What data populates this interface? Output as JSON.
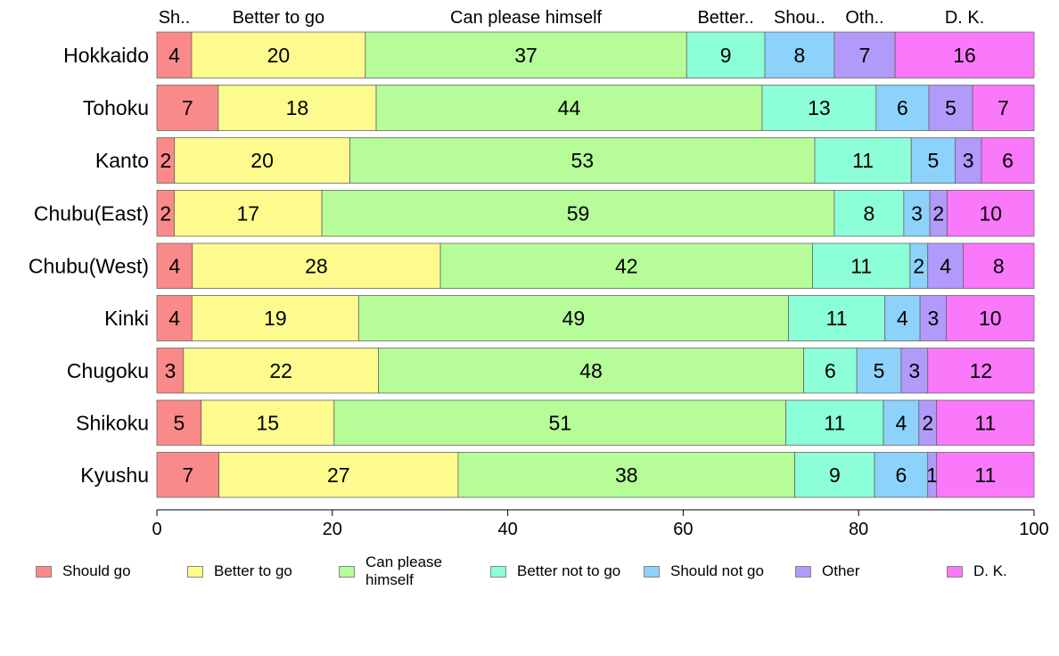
{
  "chart_data": {
    "type": "bar",
    "orientation": "horizontal",
    "stacked": true,
    "categories": [
      "Hokkaido",
      "Tohoku",
      "Kanto",
      "Chubu(East)",
      "Chubu(West)",
      "Kinki",
      "Chugoku",
      "Shikoku",
      "Kyushu"
    ],
    "series": [
      {
        "name": "Should go",
        "color": "#fa8a8a",
        "values": [
          4,
          7,
          2,
          2,
          4,
          4,
          3,
          5,
          7
        ]
      },
      {
        "name": "Better to go",
        "color": "#fdfb8e",
        "values": [
          20,
          18,
          20,
          17,
          28,
          19,
          22,
          15,
          27
        ]
      },
      {
        "name": "Can please himself",
        "color": "#b6fc98",
        "values": [
          37,
          44,
          53,
          59,
          42,
          49,
          48,
          51,
          38
        ]
      },
      {
        "name": "Better not to go",
        "color": "#8cffd8",
        "values": [
          9,
          13,
          11,
          8,
          11,
          11,
          6,
          11,
          9
        ]
      },
      {
        "name": "Should not go",
        "color": "#8cd2fa",
        "values": [
          8,
          6,
          5,
          3,
          2,
          4,
          5,
          4,
          6
        ]
      },
      {
        "name": "Other",
        "color": "#b29afa",
        "values": [
          7,
          5,
          3,
          2,
          4,
          3,
          3,
          2,
          1
        ]
      },
      {
        "name": "D. K.",
        "color": "#fa78fa",
        "values": [
          16,
          7,
          6,
          10,
          8,
          10,
          12,
          11,
          11
        ]
      }
    ],
    "top_labels": [
      "Sh..",
      "Better to go",
      "Can please himself",
      "Better..",
      "Shou..",
      "Oth..",
      "D. K."
    ],
    "legend_labels": [
      "Should go",
      "Better to go",
      "Can please\nhimself",
      "Better not to go",
      "Should not go",
      "Other",
      "D. K."
    ],
    "xlim": [
      0,
      100
    ],
    "xticks": [
      "0",
      "20",
      "40",
      "60",
      "80",
      "100"
    ],
    "legend_position": "bottom",
    "grid": false
  }
}
